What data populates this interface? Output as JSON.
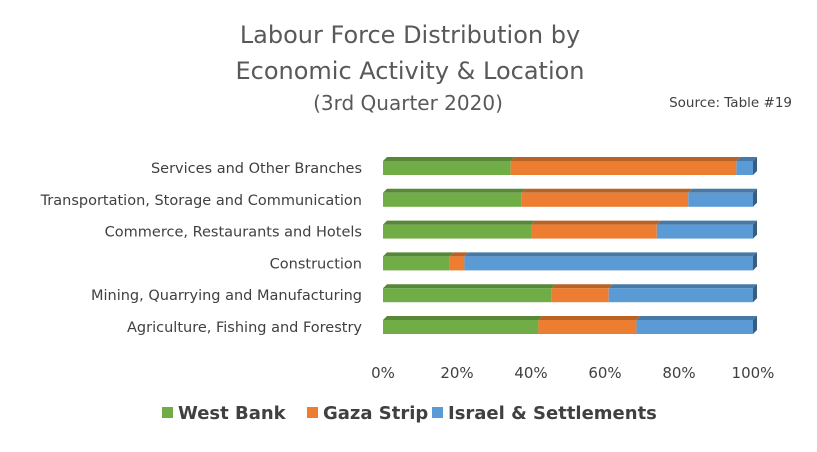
{
  "chart_data": {
    "type": "bar",
    "orientation": "horizontal",
    "stacked": "percent",
    "title_lines": [
      "Labour Force Distribution by",
      "Economic Activity & Location"
    ],
    "subtitle": "(3rd Quarter 2020)",
    "source": "Source: Table #19",
    "categories": [
      "Services and Other Branches",
      "Transportation, Storage and Communication",
      "Commerce, Restaurants and Hotels",
      "Construction",
      "Mining, Quarrying and Manufacturing",
      "Agriculture, Fishing and Forestry"
    ],
    "series": [
      {
        "name": "West Bank",
        "color": "#70ad47",
        "values": [
          34.5,
          37.5,
          40,
          18,
          45.5,
          42
        ]
      },
      {
        "name": "Gaza Strip",
        "color": "#ed7d31",
        "values": [
          61,
          45,
          34,
          4,
          15.5,
          26.5
        ]
      },
      {
        "name": "Israel & Settlements",
        "color": "#5b9bd5",
        "values": [
          4.5,
          17.5,
          26,
          78,
          39,
          31.5
        ]
      }
    ],
    "x_ticks": [
      "0%",
      "20%",
      "40%",
      "60%",
      "80%",
      "100%"
    ],
    "xlim": [
      0,
      100
    ],
    "grid": false,
    "legend_position": "bottom",
    "bar_style": "3d"
  }
}
